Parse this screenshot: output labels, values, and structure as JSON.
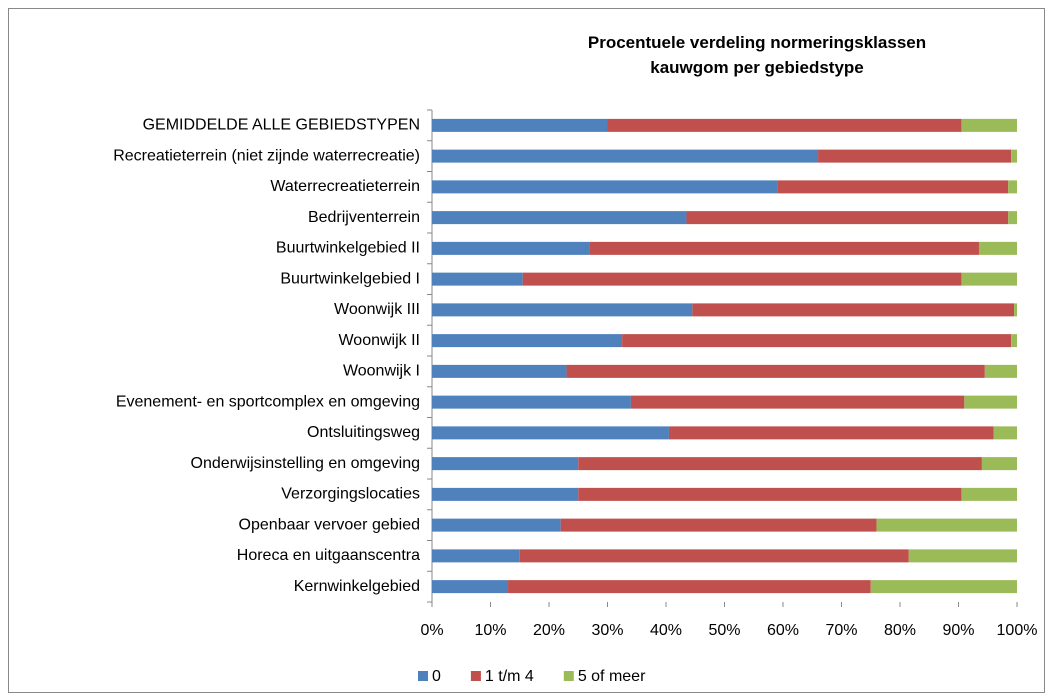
{
  "chart_data": {
    "type": "stacked_barh",
    "title": "Procentuele verdeling normeringsklassen kauwgom per gebiedstype",
    "categories": [
      "GEMIDDELDE ALLE GEBIEDSTYPEN",
      "Recreatieterrein (niet zijnde waterrecreatie)",
      "Waterrecreatieterrein",
      "Bedrijventerrein",
      "Buurtwinkelgebied II",
      "Buurtwinkelgebied I",
      "Woonwijk III",
      "Woonwijk II",
      "Woonwijk I",
      "Evenement- en sportcomplex en omgeving",
      "Ontsluitingsweg",
      "Onderwijsinstelling en omgeving",
      "Verzorgingslocaties",
      "Openbaar vervoer gebied",
      "Horeca en uitgaanscentra",
      "Kernwinkelgebied"
    ],
    "series": [
      {
        "name": "0",
        "color": "#4f81bd",
        "values": [
          30,
          66,
          59,
          43.5,
          27,
          15.5,
          44.5,
          32.5,
          23,
          34,
          40.5,
          25,
          25,
          22,
          15,
          13
        ]
      },
      {
        "name": "1 t/m 4",
        "color": "#c0504d",
        "values": [
          60.5,
          33,
          39.5,
          55,
          66.5,
          75,
          55,
          66.5,
          71.5,
          57,
          55.5,
          69,
          65.5,
          54,
          66.5,
          62
        ]
      },
      {
        "name": "5 of meer",
        "color": "#9bbb59",
        "values": [
          9.5,
          1,
          1.5,
          1.5,
          6.5,
          9.5,
          0.5,
          1,
          5.5,
          9,
          4,
          6,
          9.5,
          24,
          18.5,
          25
        ]
      }
    ],
    "xlim": [
      0,
      100
    ],
    "xticks": [
      {
        "value": 0,
        "label": "0%"
      },
      {
        "value": 10,
        "label": "10%"
      },
      {
        "value": 20,
        "label": "20%"
      },
      {
        "value": 30,
        "label": "30%"
      },
      {
        "value": 40,
        "label": "40%"
      },
      {
        "value": 50,
        "label": "50%"
      },
      {
        "value": 60,
        "label": "60%"
      },
      {
        "value": 70,
        "label": "70%"
      },
      {
        "value": 80,
        "label": "80%"
      },
      {
        "value": 90,
        "label": "90%"
      },
      {
        "value": 100,
        "label": "100%"
      }
    ],
    "legend": "bottom"
  }
}
